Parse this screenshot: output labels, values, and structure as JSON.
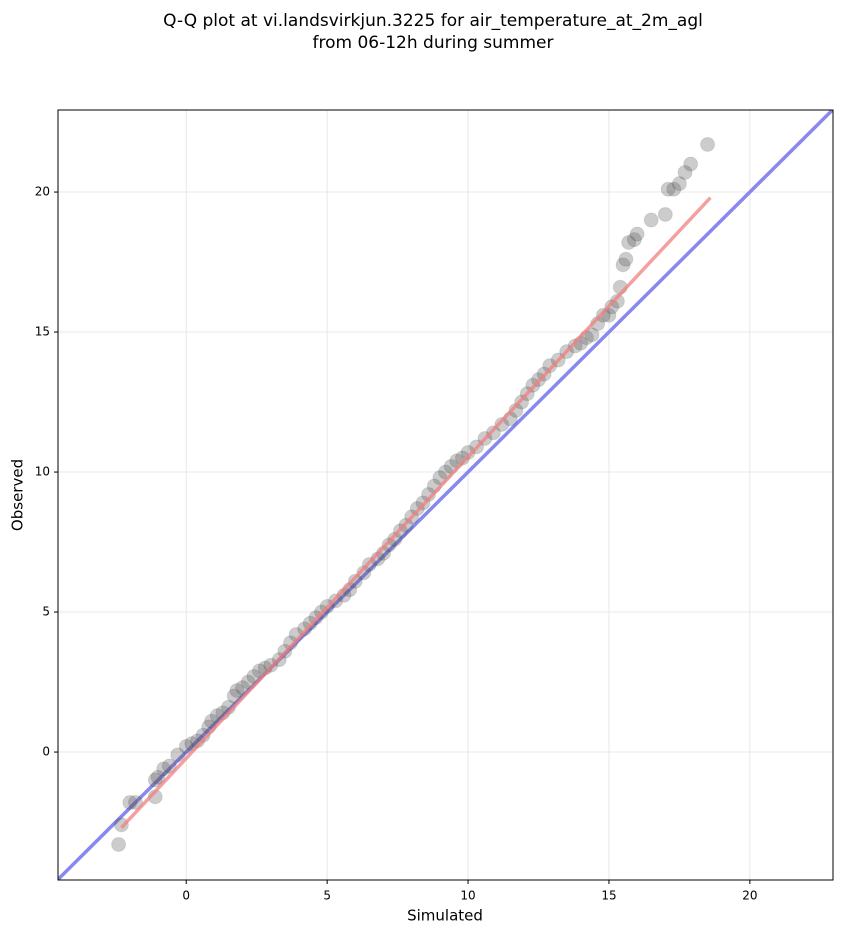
{
  "chart_data": {
    "type": "scatter",
    "title": [
      "Q-Q plot at vi.landsvirkjun.3225 for air_temperature_at_2m_agl",
      "from 06-12h during summer"
    ],
    "xlabel": "Simulated",
    "ylabel": "Observed",
    "xlim": [
      -4.55,
      22.95
    ],
    "ylim": [
      -4.57,
      22.93
    ],
    "xticks": [
      0,
      5,
      10,
      15,
      20
    ],
    "yticks": [
      0,
      5,
      10,
      15,
      20
    ],
    "grid": true,
    "color": "#555555",
    "alpha": 0.3,
    "x": [
      -2.4,
      -2.3,
      -2.0,
      -1.8,
      -1.1,
      -1.1,
      -1.0,
      -0.8,
      -0.6,
      -0.3,
      0,
      0.2,
      0.4,
      0.6,
      0.8,
      0.9,
      1.1,
      1.3,
      1.5,
      1.7,
      1.8,
      2.0,
      2.2,
      2.4,
      2.6,
      2.8,
      3.0,
      3.3,
      3.5,
      3.7,
      3.9,
      4.2,
      4.4,
      4.6,
      4.8,
      5.0,
      5.3,
      5.6,
      5.8,
      6.0,
      6.3,
      6.5,
      6.8,
      7.0,
      7.2,
      7.4,
      7.6,
      7.8,
      8.0,
      8.2,
      8.4,
      8.6,
      8.8,
      9.0,
      9.2,
      9.4,
      9.6,
      9.8,
      10.0,
      10.3,
      10.6,
      10.9,
      11.2,
      11.5,
      11.7,
      11.9,
      12.1,
      12.3,
      12.5,
      12.7,
      12.9,
      13.2,
      13.5,
      13.8,
      14.0,
      14.2,
      14.4,
      14.6,
      14.8,
      15.0,
      15.1,
      15.3,
      15.4,
      15.5,
      15.6,
      15.7,
      15.9,
      16.0,
      16.5,
      17.0,
      17.1,
      17.3,
      17.5,
      17.7,
      17.9,
      18.5
    ],
    "y": [
      -3.3,
      -2.6,
      -1.8,
      -1.8,
      -1.6,
      -1.0,
      -0.9,
      -0.6,
      -0.5,
      -0.1,
      0.2,
      0.3,
      0.4,
      0.6,
      0.9,
      1.1,
      1.3,
      1.4,
      1.6,
      2.0,
      2.2,
      2.3,
      2.5,
      2.7,
      2.9,
      3.0,
      3.1,
      3.3,
      3.6,
      3.9,
      4.2,
      4.4,
      4.6,
      4.8,
      5.0,
      5.2,
      5.4,
      5.6,
      5.8,
      6.1,
      6.4,
      6.7,
      6.9,
      7.1,
      7.4,
      7.6,
      7.9,
      8.1,
      8.4,
      8.7,
      8.9,
      9.2,
      9.5,
      9.8,
      10.0,
      10.2,
      10.4,
      10.5,
      10.7,
      10.9,
      11.2,
      11.4,
      11.7,
      11.9,
      12.2,
      12.5,
      12.8,
      13.1,
      13.3,
      13.5,
      13.8,
      14.0,
      14.3,
      14.5,
      14.6,
      14.8,
      14.9,
      15.3,
      15.6,
      15.6,
      15.9,
      16.1,
      16.6,
      17.4,
      17.6,
      18.2,
      18.3,
      18.5,
      19.0,
      19.2,
      20.1,
      20.1,
      20.3,
      20.7,
      21.0,
      21.7
    ],
    "fit_line": {
      "x": [
        -2.3,
        18.6
      ],
      "y": [
        -2.7,
        19.8
      ],
      "color": "#f08080"
    },
    "reference_line": {
      "color": "#8888ee"
    }
  }
}
